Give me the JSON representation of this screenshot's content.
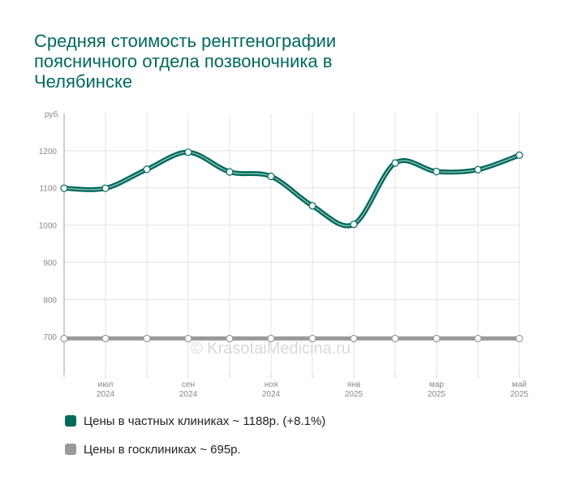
{
  "chart_data": {
    "type": "line",
    "title": "Средняя стоимость рентгенографии поясничного отдела позвоночника в Челябинске",
    "y_unit_label": "руб.",
    "ylim": [
      600,
      1300
    ],
    "y_ticks": [
      700,
      800,
      900,
      1000,
      1100,
      1200
    ],
    "x_labels": [
      {
        "index": 1,
        "month": "июл",
        "year": "2024"
      },
      {
        "index": 3,
        "month": "сен",
        "year": "2024"
      },
      {
        "index": 5,
        "month": "ноя",
        "year": "2024"
      },
      {
        "index": 7,
        "month": "янв",
        "year": "2025"
      },
      {
        "index": 9,
        "month": "мар",
        "year": "2025"
      },
      {
        "index": 11,
        "month": "май",
        "year": "2025"
      }
    ],
    "x": [
      "2024-06",
      "2024-07",
      "2024-08",
      "2024-09",
      "2024-10",
      "2024-11",
      "2024-12",
      "2025-01",
      "2025-02",
      "2025-03",
      "2025-04",
      "2025-05"
    ],
    "series": [
      {
        "name": "Цены в частных клиниках ~ 1188р. (+8.1%)",
        "color": "#00695c",
        "values": [
          1099,
          1099,
          1150,
          1196,
          1143,
          1131,
          1052,
          1002,
          1167,
          1144,
          1149,
          1188
        ]
      },
      {
        "name": "Цены в госклиниках ~ 695р.",
        "color": "#999999",
        "values": [
          695,
          695,
          695,
          695,
          695,
          695,
          695,
          695,
          695,
          695,
          695,
          695
        ]
      }
    ],
    "watermark": "© KrasotaiMedicina.ru",
    "grid": true,
    "legend_position": "bottom"
  }
}
